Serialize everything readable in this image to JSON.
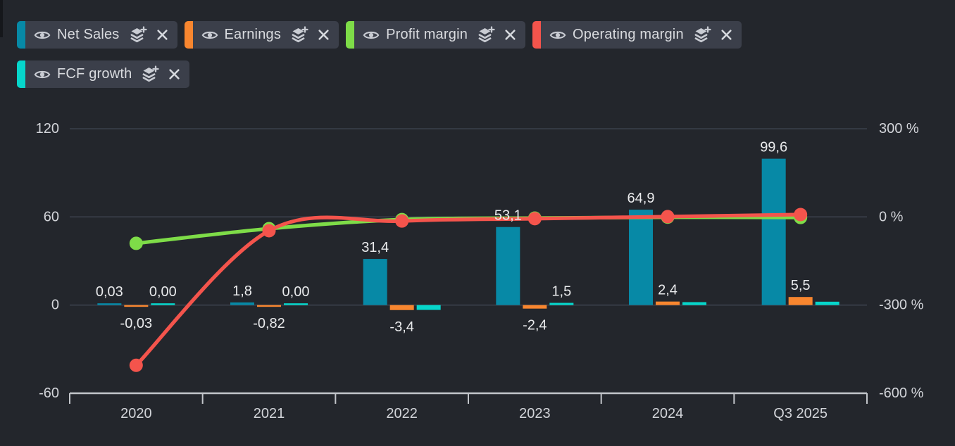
{
  "window": {
    "background": "#23262c",
    "description": "Dark-theme stock fundamentals chart with removable series chips"
  },
  "legend": {
    "chip_background": "#3b3f4a",
    "text_color": "#d9dbdf",
    "icon_color": "#c9ccd3",
    "items": [
      {
        "label": "Net Sales",
        "color": "#0789a6"
      },
      {
        "label": "Earnings",
        "color": "#f8862f"
      },
      {
        "label": "Profit margin",
        "color": "#7edc48"
      },
      {
        "label": "Operating margin",
        "color": "#f4544c"
      },
      {
        "label": "FCF growth",
        "color": "#06d6cb"
      }
    ],
    "chip_icons": [
      "eye-icon",
      "layers-plus-icon",
      "close-icon"
    ]
  },
  "chart_data": {
    "type": "bar",
    "subtype": "bar+line combo, dual axis",
    "decimal_separator": ",",
    "categories": [
      "2020",
      "2021",
      "2022",
      "2023",
      "2024",
      "Q3 2025"
    ],
    "bar_series": [
      {
        "name": "Net Sales",
        "color": "#0789a6",
        "axis": "left",
        "values": [
          0.03,
          1.8,
          31.4,
          53.1,
          64.9,
          99.6
        ],
        "labels": [
          "0,03",
          "1,8",
          "31,4",
          "53,1",
          "64,9",
          "99,6"
        ]
      },
      {
        "name": "Earnings",
        "color": "#f8862f",
        "axis": "left",
        "values": [
          -0.03,
          -0.82,
          -3.4,
          -2.4,
          2.4,
          5.5
        ],
        "labels": [
          "-0,03",
          "-0,82",
          "-3,4",
          "-2,4",
          "2,4",
          "5,5"
        ]
      },
      {
        "name": "FCF growth",
        "color": "#06d6cb",
        "axis": "left",
        "values": [
          0.0,
          0.0,
          -3.3,
          1.5,
          2.0,
          2.3
        ],
        "labels": [
          "0,00",
          "0,00",
          "",
          "1,5",
          "",
          ""
        ]
      }
    ],
    "line_series": [
      {
        "name": "Profit margin",
        "color": "#7edc48",
        "axis": "right",
        "values_approx_pct": [
          -90,
          -40,
          -9,
          -4,
          -1,
          -2
        ]
      },
      {
        "name": "Operating margin",
        "color": "#f4544c",
        "axis": "right",
        "values_approx_pct": [
          -505,
          -47,
          -14,
          -6,
          1,
          8
        ]
      }
    ],
    "left_axis": {
      "ticks": [
        120,
        60,
        0,
        -60
      ],
      "labels": [
        "120",
        "60",
        "0",
        "-60"
      ],
      "range": [
        -60,
        120
      ]
    },
    "right_axis": {
      "ticks": [
        300,
        0,
        -300,
        -600
      ],
      "labels": [
        "300 %",
        "0 %",
        "-300 %",
        "-600 %"
      ],
      "range": [
        -600,
        300
      ]
    },
    "grid": "horizontal gridlines at left-axis 120 / 60 / 0; bright baseline with down ticks at category boundaries",
    "legend_position": "top-left chips",
    "colors": {
      "gridline": "#3b404b",
      "axis_line": "#c2c5ca",
      "axis_text": "#d2d4d9",
      "data_label": "#e9eaec"
    }
  }
}
